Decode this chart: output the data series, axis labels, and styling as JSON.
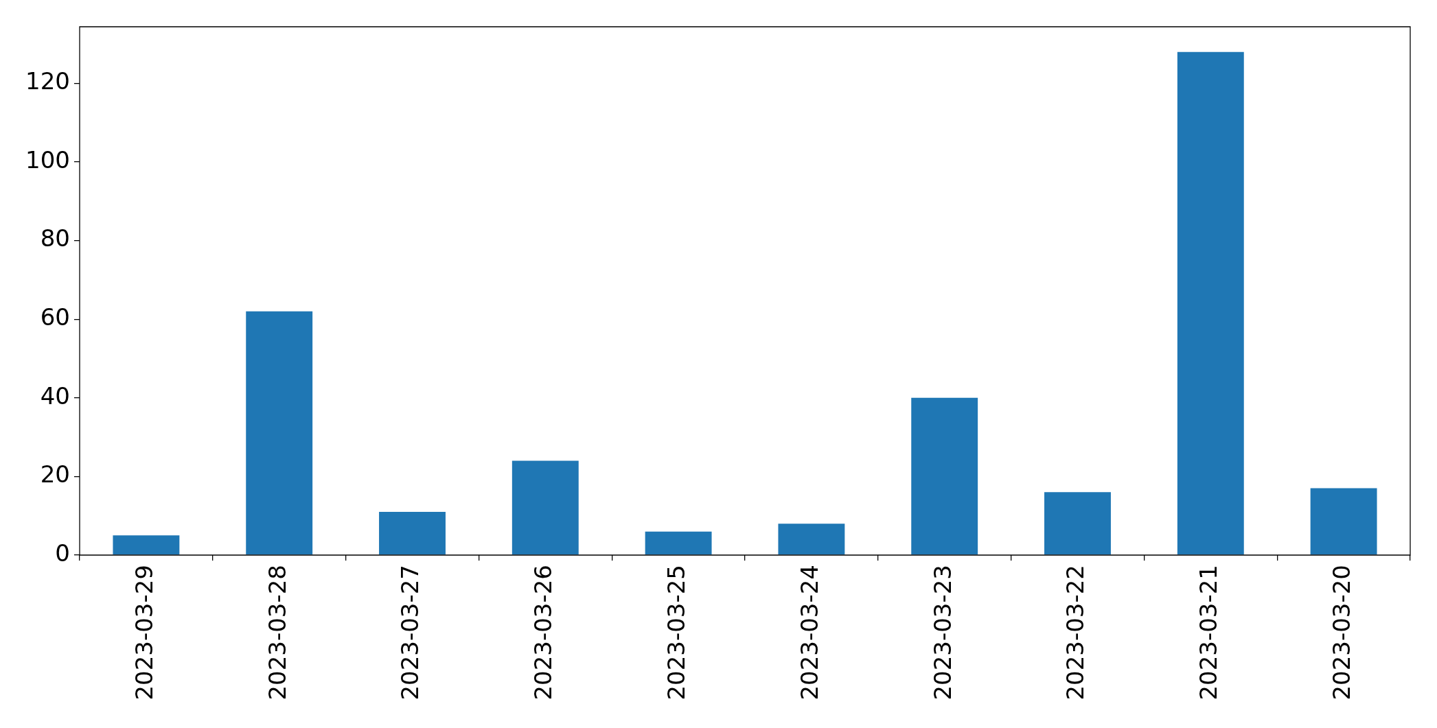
{
  "chart_data": {
    "type": "bar",
    "categories": [
      "2023-03-29",
      "2023-03-28",
      "2023-03-27",
      "2023-03-26",
      "2023-03-25",
      "2023-03-24",
      "2023-03-23",
      "2023-03-22",
      "2023-03-21",
      "2023-03-20"
    ],
    "values": [
      5,
      62,
      11,
      24,
      6,
      8,
      40,
      16,
      128,
      17
    ],
    "color": "#1f77b4",
    "ylim": [
      0,
      134.4
    ],
    "yticks": [
      0,
      20,
      40,
      60,
      80,
      100,
      120
    ]
  }
}
